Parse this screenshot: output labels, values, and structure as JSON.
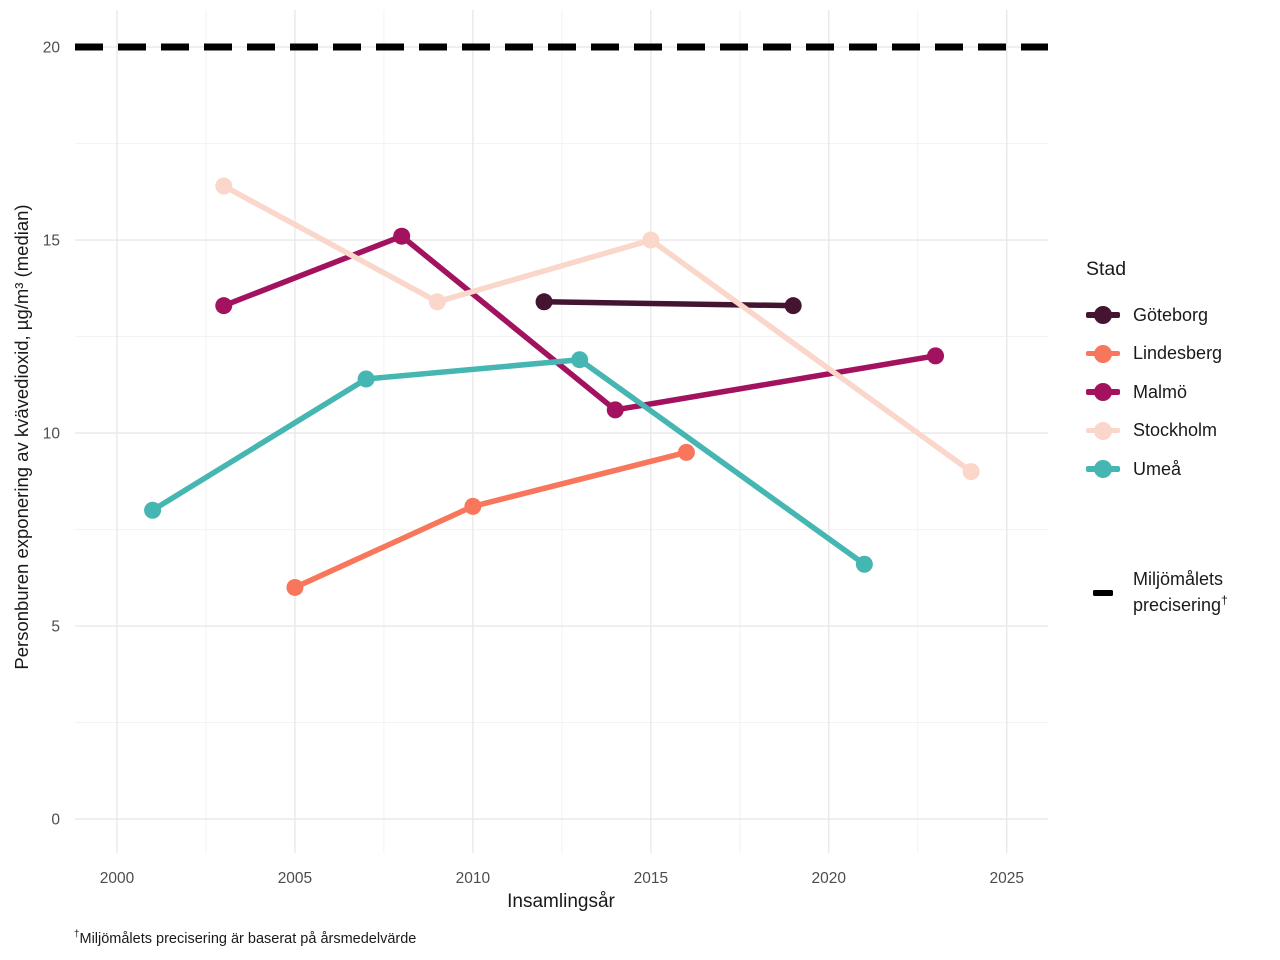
{
  "legend": {
    "title": "Stad",
    "dashed_label_line1": "Miljömålets",
    "dashed_label_line2": "precisering",
    "dagger": "†"
  },
  "footnote": {
    "dagger": "†",
    "text": "Miljömålets precisering är baserat på årsmedelvärde"
  },
  "colors": {
    "grid_major": "#E8E8E8",
    "grid_minor": "#F3F3F3",
    "tick_label": "#4D4D4D",
    "reference_line": "#000000"
  },
  "chart_data": {
    "type": "line",
    "title": "",
    "xlabel": "Insamlingsår",
    "ylabel": "Personburen exponering av kvävedioxid, µg/m³ (median)",
    "xlim": [
      1998.82,
      2026.16
    ],
    "ylim": [
      -0.88,
      20.96
    ],
    "x_ticks": [
      2000,
      2005,
      2010,
      2015,
      2020,
      2025
    ],
    "y_ticks": [
      0,
      5,
      10,
      15,
      20
    ],
    "x_minor_ticks": [
      2002.5,
      2007.5,
      2012.5,
      2017.5,
      2022.5
    ],
    "y_minor_ticks": [
      2.5,
      7.5,
      12.5,
      17.5
    ],
    "grid": true,
    "legend_position": "right",
    "reference_line": {
      "y": 20,
      "style": "dashed",
      "color": "#000000",
      "label": "Miljömålets precisering†"
    },
    "series": [
      {
        "name": "Göteborg",
        "color": "#451431",
        "x": [
          2012,
          2019
        ],
        "y": [
          13.4,
          13.3
        ]
      },
      {
        "name": "Lindesberg",
        "color": "#F8765C",
        "x": [
          2005,
          2010,
          2016
        ],
        "y": [
          6.0,
          8.1,
          9.5
        ]
      },
      {
        "name": "Malmö",
        "color": "#A2125F",
        "x": [
          2003,
          2008,
          2014,
          2023
        ],
        "y": [
          13.3,
          15.1,
          10.6,
          12.0
        ]
      },
      {
        "name": "Stockholm",
        "color": "#FAD6CB",
        "x": [
          2003,
          2009,
          2015,
          2024
        ],
        "y": [
          16.4,
          13.4,
          15.0,
          9.0
        ]
      },
      {
        "name": "Umeå",
        "color": "#45B6B2",
        "x": [
          2001,
          2007,
          2013,
          2021
        ],
        "y": [
          8.0,
          11.4,
          11.9,
          6.6
        ]
      }
    ]
  }
}
